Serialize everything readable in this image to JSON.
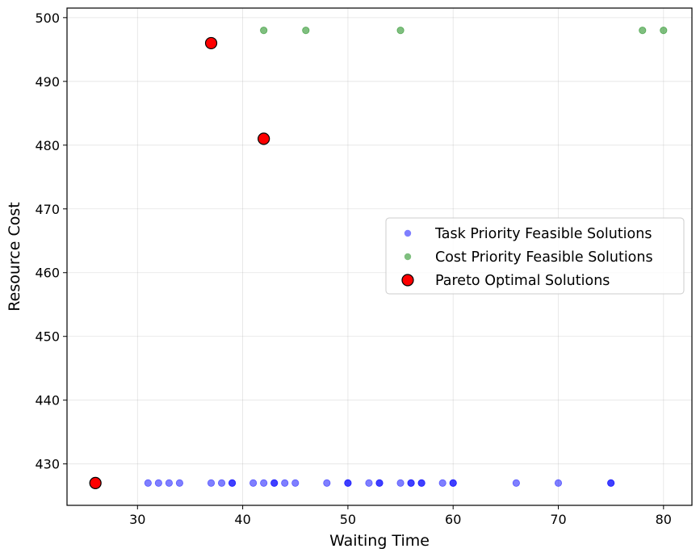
{
  "chart_data": {
    "type": "scatter",
    "title": "",
    "xlabel": "Waiting Time",
    "ylabel": "Resource Cost",
    "xlim": [
      23.3,
      82.7
    ],
    "ylim": [
      423.5,
      501.5
    ],
    "xticks": [
      30,
      40,
      50,
      60,
      70,
      80
    ],
    "yticks": [
      430,
      440,
      450,
      460,
      470,
      480,
      490,
      500
    ],
    "grid": true,
    "legend_position": "center-right",
    "series": [
      {
        "name": "Task Priority Feasible Solutions",
        "color": "#0000ff",
        "alpha": 0.5,
        "marker": "circle",
        "points": [
          [
            31,
            427
          ],
          [
            32,
            427
          ],
          [
            33,
            427
          ],
          [
            34,
            427
          ],
          [
            37,
            427
          ],
          [
            38,
            427
          ],
          [
            39,
            427
          ],
          [
            39,
            427
          ],
          [
            41,
            427
          ],
          [
            42,
            427
          ],
          [
            43,
            427
          ],
          [
            43,
            427
          ],
          [
            44,
            427
          ],
          [
            45,
            427
          ],
          [
            48,
            427
          ],
          [
            50,
            427
          ],
          [
            50,
            427
          ],
          [
            52,
            427
          ],
          [
            53,
            427
          ],
          [
            53,
            427
          ],
          [
            55,
            427
          ],
          [
            56,
            427
          ],
          [
            56,
            427
          ],
          [
            57,
            427
          ],
          [
            57,
            427
          ],
          [
            59,
            427
          ],
          [
            60,
            427
          ],
          [
            60,
            427
          ],
          [
            66,
            427
          ],
          [
            70,
            427
          ],
          [
            75,
            427
          ],
          [
            75,
            427
          ]
        ]
      },
      {
        "name": "Cost Priority Feasible Solutions",
        "color": "#008000",
        "alpha": 0.5,
        "marker": "circle",
        "points": [
          [
            42,
            498
          ],
          [
            46,
            498
          ],
          [
            55,
            498
          ],
          [
            78,
            498
          ],
          [
            80,
            498
          ]
        ]
      },
      {
        "name": "Pareto Optimal Solutions",
        "color": "#ff0000",
        "edgecolor": "#000000",
        "alpha": 1.0,
        "marker": "circle-large",
        "points": [
          [
            26,
            427
          ],
          [
            37,
            496
          ],
          [
            42,
            481
          ]
        ]
      }
    ]
  }
}
